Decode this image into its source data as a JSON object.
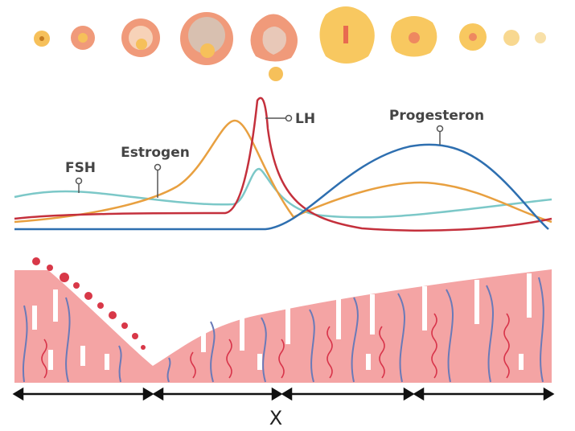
{
  "hormones": [
    {
      "label": "FSH"
    },
    {
      "label": "Estrogen"
    },
    {
      "label": "LH"
    },
    {
      "label": "Progesteron"
    }
  ],
  "phase_label": "X"
}
